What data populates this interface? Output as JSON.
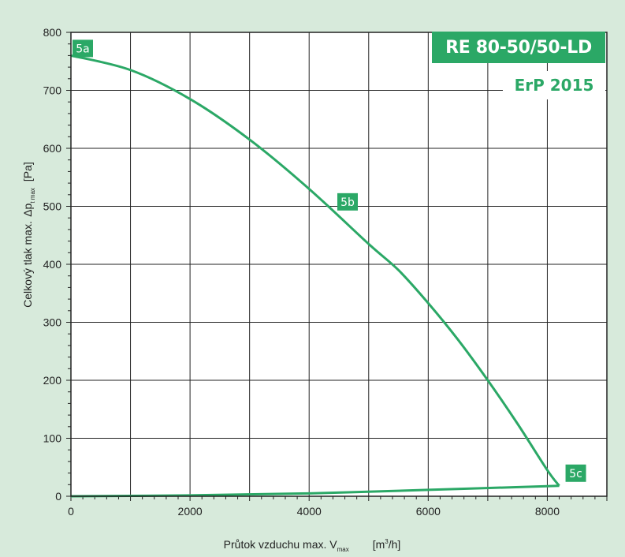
{
  "chart_data": {
    "type": "line",
    "title": "RE 80-50/50-LD",
    "subtitle": "ErP 2015",
    "ylabel_line1": "Δp",
    "ylabel_line1_sub": "t max",
    "ylabel_line1_unit": "[Pa]",
    "ylabel_line2": "Celkový tlak max.",
    "xlabel_main": "Průtok vzduchu max. V",
    "xlabel_sub": "max",
    "xlabel_unit_pre": "[m",
    "xlabel_unit_sup": "3",
    "xlabel_unit_post": "/h]",
    "xlim": [
      0,
      9000
    ],
    "ylim": [
      0,
      800
    ],
    "x_ticks": [
      0,
      2000,
      4000,
      6000,
      8000
    ],
    "y_ticks": [
      0,
      100,
      200,
      300,
      400,
      500,
      600,
      700,
      800
    ],
    "x_tick_labels": [
      "0",
      "2000",
      "4000",
      "6000",
      "8000"
    ],
    "y_tick_labels": [
      "0",
      "100",
      "200",
      "300",
      "400",
      "500",
      "600",
      "700",
      "800"
    ],
    "grid": true,
    "series": [
      {
        "x": [
          0,
          1000,
          2000,
          3000,
          4000,
          5000,
          5500,
          6000,
          6500,
          7000,
          7500,
          8000,
          8200
        ],
        "y": [
          760,
          735,
          685,
          615,
          530,
          435,
          390,
          333,
          270,
          200,
          125,
          45,
          18
        ],
        "color": "#2ba866"
      },
      {
        "x": [
          0,
          2000,
          4000,
          6000,
          8200
        ],
        "y": [
          0,
          1.5,
          5,
          11,
          18
        ],
        "color": "#2ba866"
      }
    ],
    "annotations": [
      {
        "label": "5a",
        "x": 0,
        "y": 760
      },
      {
        "label": "5b",
        "x": 4500,
        "y": 490
      },
      {
        "label": "5c",
        "x": 8200,
        "y": 18
      }
    ]
  },
  "colors": {
    "background": "#d7eadb",
    "plot_bg": "#ffffff",
    "accent": "#2ba866",
    "grid": "#222222"
  }
}
